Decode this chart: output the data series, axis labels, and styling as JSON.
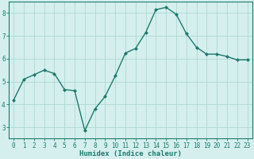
{
  "x": [
    0,
    1,
    2,
    3,
    4,
    5,
    6,
    7,
    8,
    9,
    10,
    11,
    12,
    13,
    14,
    15,
    16,
    17,
    18,
    19,
    20,
    21,
    22,
    23
  ],
  "y": [
    4.2,
    5.1,
    5.3,
    5.5,
    5.35,
    4.65,
    4.6,
    2.85,
    3.8,
    4.35,
    5.25,
    6.25,
    6.45,
    7.15,
    8.15,
    8.25,
    7.95,
    7.1,
    6.5,
    6.2,
    6.2,
    6.1,
    5.95,
    5.95
  ],
  "line_color": "#1f7a6d",
  "marker": "D",
  "marker_size": 2.0,
  "bg_color": "#d4efee",
  "grid_color": "#b0d8d4",
  "xlabel": "Humidex (Indice chaleur)",
  "xlim": [
    -0.5,
    23.5
  ],
  "ylim": [
    2.5,
    8.5
  ],
  "yticks": [
    3,
    4,
    5,
    6,
    7,
    8
  ],
  "xticks": [
    0,
    1,
    2,
    3,
    4,
    5,
    6,
    7,
    8,
    9,
    10,
    11,
    12,
    13,
    14,
    15,
    16,
    17,
    18,
    19,
    20,
    21,
    22,
    23
  ],
  "tick_label_fontsize": 5.5,
  "xlabel_fontsize": 6.5,
  "tick_color": "#1f7a6d",
  "spine_color": "#1f7a6d",
  "linewidth": 1.0
}
